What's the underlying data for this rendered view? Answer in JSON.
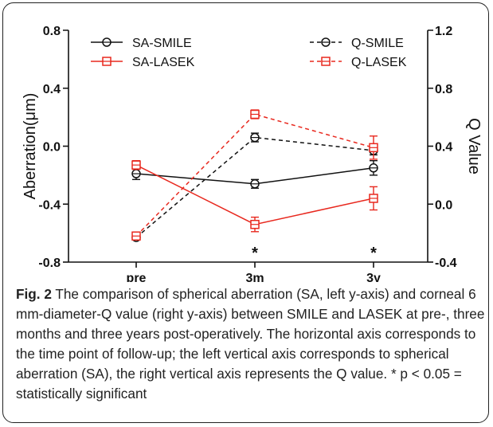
{
  "chart_data": {
    "type": "line",
    "categories": [
      "pre",
      "3m",
      "3y"
    ],
    "left_axis": {
      "label": "Aberration(μm)",
      "ylim": [
        -0.8,
        0.8
      ],
      "ticks": [
        "0.8",
        "0.4",
        "0.0",
        "-0.4",
        "-0.8"
      ],
      "tick_values": [
        0.8,
        0.4,
        0.0,
        -0.4,
        -0.8
      ]
    },
    "right_axis": {
      "label": "Q Value",
      "ylim": [
        -0.4,
        1.2
      ],
      "ticks": [
        "1.2",
        "0.8",
        "0.4",
        "0.0",
        "-0.4"
      ],
      "tick_values": [
        1.2,
        0.8,
        0.4,
        0.0,
        -0.4
      ]
    },
    "series": [
      {
        "name": "SA-SMILE",
        "axis": "left",
        "color": "#111111",
        "dashed": false,
        "values": [
          -0.19,
          -0.26,
          -0.15
        ],
        "errors": [
          0.04,
          0.03,
          0.05
        ]
      },
      {
        "name": "SA-LASEK",
        "axis": "left",
        "color": "#e8281e",
        "dashed": false,
        "values": [
          -0.13,
          -0.54,
          -0.36
        ],
        "errors": [
          0.03,
          0.05,
          0.08
        ]
      },
      {
        "name": "Q-SMILE",
        "axis": "right",
        "color": "#111111",
        "dashed": true,
        "values": [
          -0.23,
          0.46,
          0.37
        ],
        "errors": [
          0.01,
          0.03,
          0.03
        ]
      },
      {
        "name": "Q-LASEK",
        "axis": "right",
        "color": "#e8281e",
        "dashed": true,
        "values": [
          -0.22,
          0.62,
          0.39
        ],
        "errors": [
          0.01,
          0.03,
          0.08
        ]
      }
    ],
    "significance_markers": [
      {
        "category": "3m",
        "label": "*"
      },
      {
        "category": "3y",
        "label": "*"
      }
    ],
    "legend_placement": "top"
  },
  "caption": {
    "lead": "Fig. 2",
    "text": " The comparison of spherical aberration (SA, left y-axis) and corneal 6 mm-diameter-Q value (right y-axis) between SMILE and LASEK at pre-, three months and three years post-operatively. The horizontal axis corresponds to the time point of follow-up; the left vertical axis corresponds to spherical aberration (SA), the right vertical axis represents the Q value. * p < 0.05 = statistically significant"
  }
}
